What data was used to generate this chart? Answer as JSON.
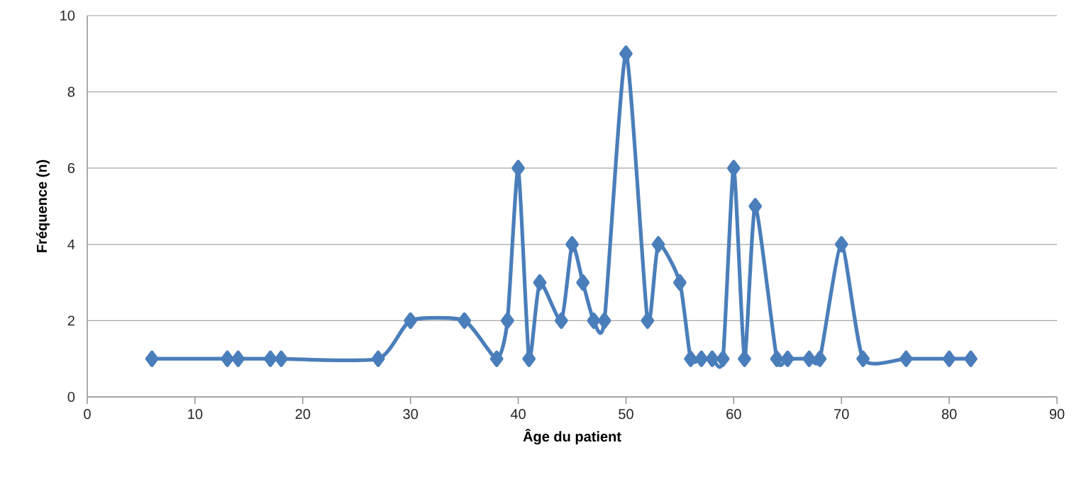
{
  "chart_data": {
    "type": "line",
    "xlabel": "Âge du patient",
    "ylabel": "Fréquence (n)",
    "x": [
      6,
      13,
      14,
      17,
      18,
      27,
      30,
      35,
      38,
      39,
      40,
      41,
      42,
      44,
      45,
      46,
      47,
      48,
      50,
      52,
      53,
      55,
      56,
      57,
      58,
      59,
      60,
      61,
      62,
      64,
      65,
      67,
      68,
      70,
      72,
      76,
      80,
      82
    ],
    "values": [
      1,
      1,
      1,
      1,
      1,
      1,
      2,
      2,
      1,
      2,
      6,
      1,
      3,
      2,
      4,
      3,
      2,
      2,
      9,
      2,
      4,
      3,
      1,
      1,
      1,
      1,
      6,
      1,
      5,
      1,
      1,
      1,
      1,
      4,
      1,
      1,
      1,
      1
    ],
    "color": "#4a7ebb",
    "marker": "diamond",
    "grid": "y",
    "xlim": [
      0,
      90
    ],
    "xticks": [
      0,
      10,
      20,
      30,
      40,
      50,
      60,
      70,
      80,
      90
    ],
    "ylim": [
      0,
      10
    ],
    "yticks": [
      0,
      2,
      4,
      6,
      8,
      10
    ]
  }
}
